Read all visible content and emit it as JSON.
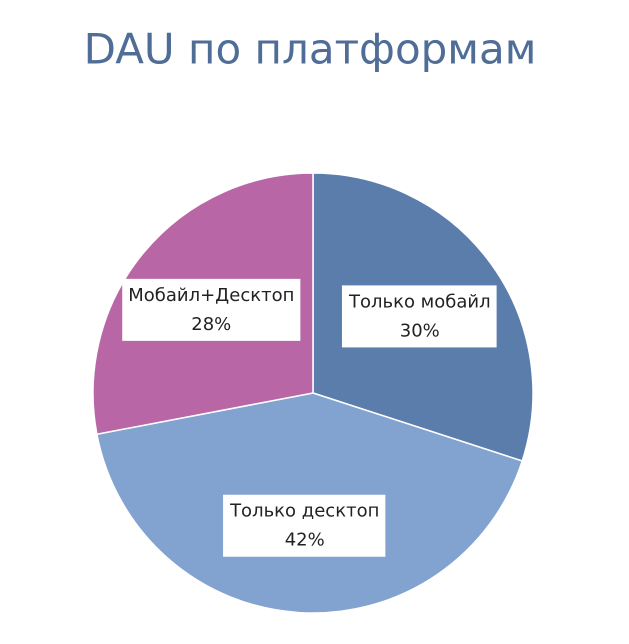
{
  "chart_data": {
    "type": "pie",
    "title": "DAU по платформам",
    "categories": [
      "Только мобайл",
      "Только десктоп",
      "Мобайл+Десктоп"
    ],
    "values": [
      30,
      42,
      28
    ],
    "value_labels": [
      "30%",
      "42%",
      "28%"
    ],
    "colors": [
      "#5a7dab",
      "#82a2cf",
      "#b866a5"
    ]
  }
}
